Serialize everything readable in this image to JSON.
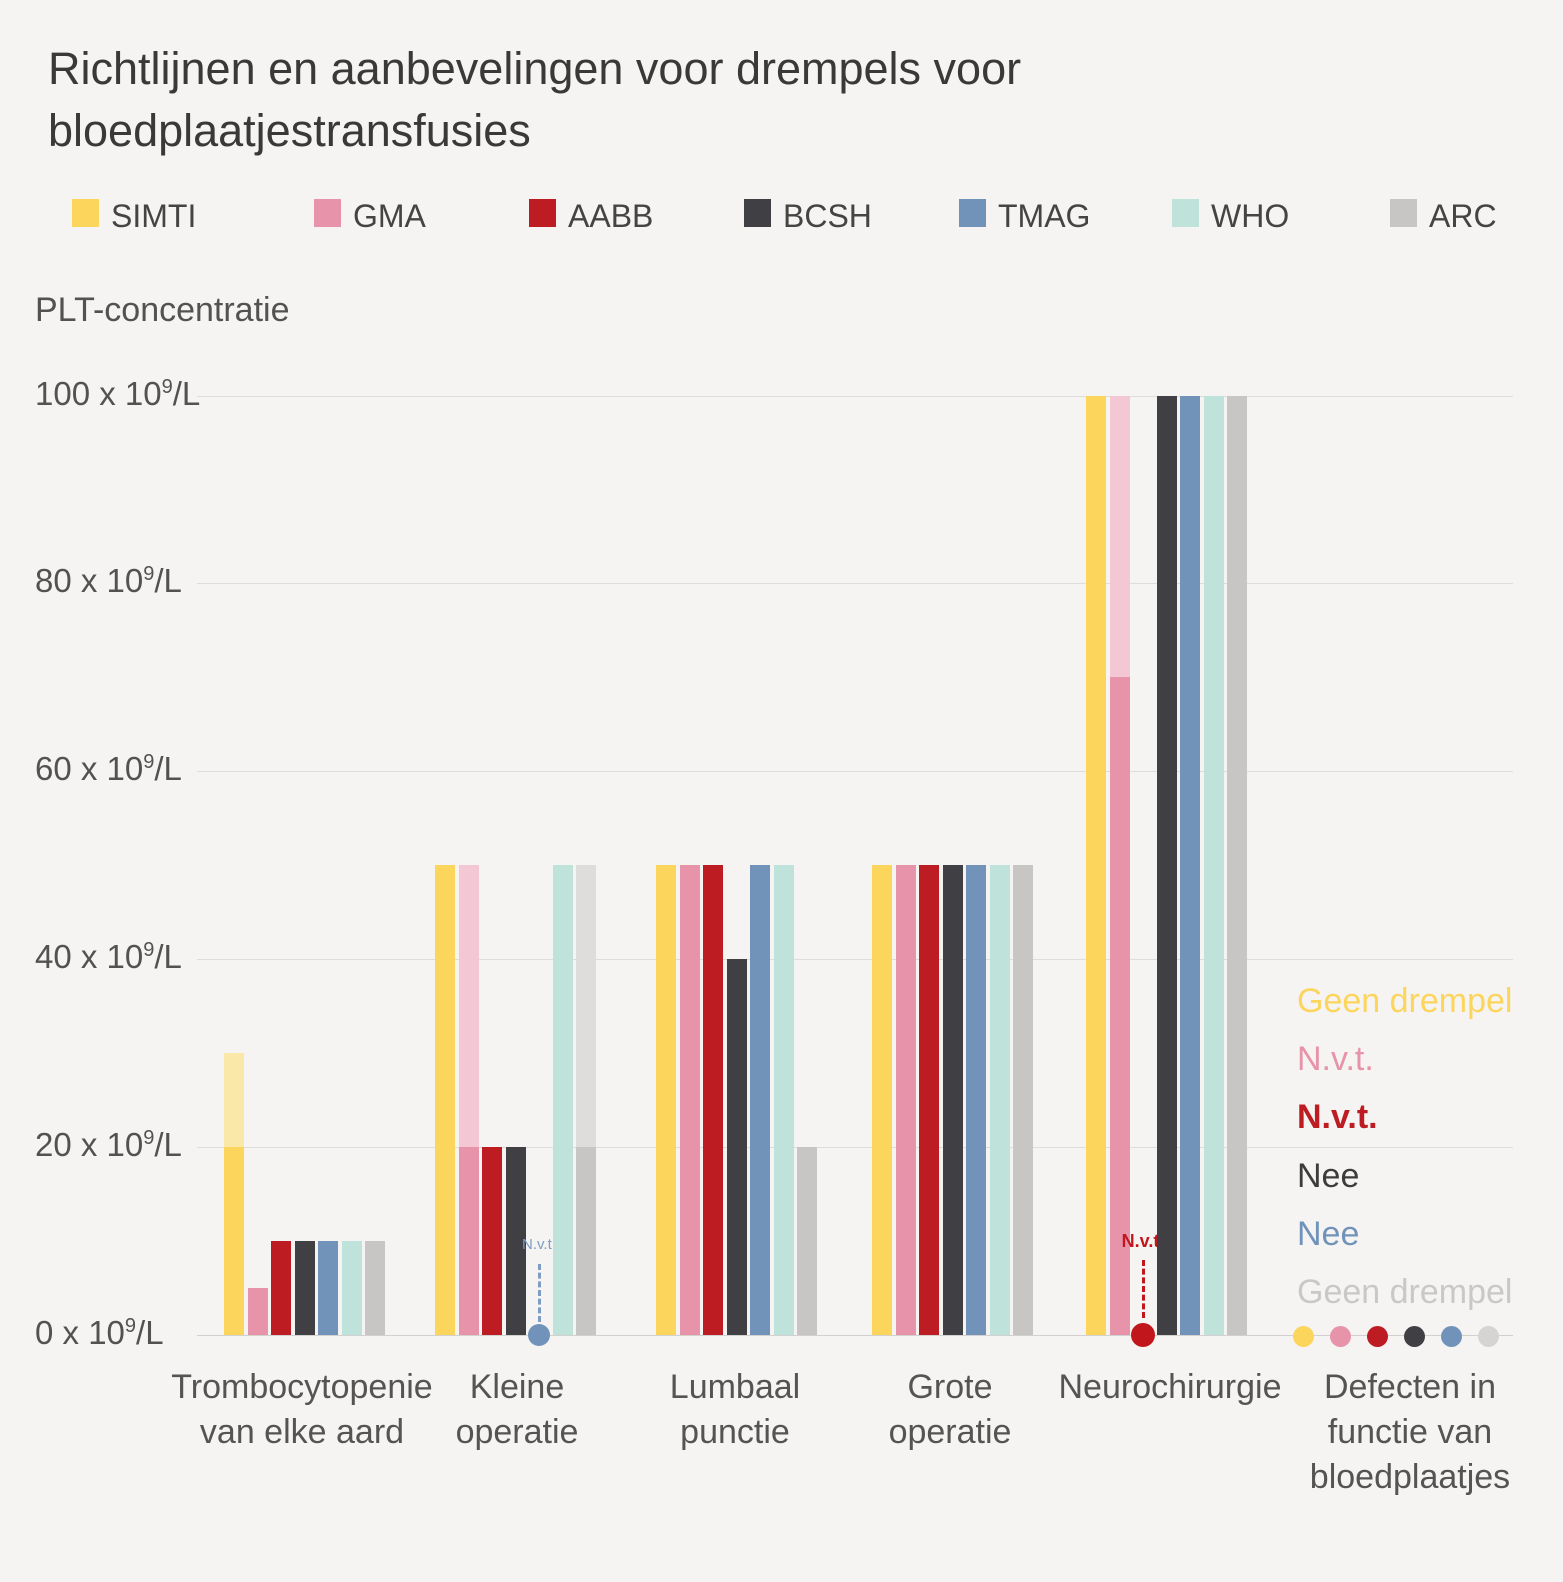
{
  "title": {
    "line1": "Richtlijnen en aanbevelingen voor drempels voor",
    "line2": "bloedplaatjestransfusies"
  },
  "colors": {
    "background": "#F5F4F2",
    "gridline": "#DEDDDB",
    "text_dark": "#3A3938",
    "text_gray": "#545251",
    "SIMTI": "#FBD55C",
    "SIMTI_light": "#FAE8A8",
    "GMA": "#E793AA",
    "GMA_light": "#F3C7D3",
    "AABB": "#BD1C22",
    "BCSH": "#403F44",
    "TMAG": "#7193BA",
    "WHO": "#BFE3DB",
    "ARC": "#C7C6C5",
    "ARC_light": "#DEDDDC",
    "annotation_blue": "#7E9DC3",
    "annotation_red": "#C0161C",
    "right_label_gray": "#C9C8C6"
  },
  "legend": [
    {
      "label": "SIMTI",
      "color": "#FBD55C"
    },
    {
      "label": "GMA",
      "color": "#E793AA"
    },
    {
      "label": "AABB",
      "color": "#BD1C22"
    },
    {
      "label": "BCSH",
      "color": "#403F44"
    },
    {
      "label": "TMAG",
      "color": "#7193BA"
    },
    {
      "label": "WHO",
      "color": "#BFE3DB"
    },
    {
      "label": "ARC",
      "color": "#C7C6C5"
    }
  ],
  "chart_data": {
    "type": "bar",
    "title": "Richtlijnen en aanbevelingen voor drempels voor bloedplaatjestransfusies",
    "ylabel": "PLT-concentratie",
    "xlabel": "",
    "unit": "x 10⁹/L",
    "ylim": [
      0,
      100
    ],
    "yticks": [
      0,
      20,
      40,
      60,
      80,
      100
    ],
    "tick_sep": " x 10",
    "tick_sup": "9",
    "tick_end": "/L",
    "grid": true,
    "series_names": [
      "SIMTI",
      "GMA",
      "AABB",
      "BCSH",
      "TMAG",
      "WHO",
      "ARC"
    ],
    "categories": [
      {
        "label_lines": [
          "Trombocytopenie",
          "van elke aard"
        ],
        "entries": [
          {
            "org": "SIMTI",
            "value": 20,
            "light_to": 30
          },
          {
            "org": "GMA",
            "value": 5
          },
          {
            "org": "AABB",
            "value": 10
          },
          {
            "org": "BCSH",
            "value": 10
          },
          {
            "org": "TMAG",
            "value": 10
          },
          {
            "org": "WHO",
            "value": 10
          },
          {
            "org": "ARC",
            "value": 10
          }
        ]
      },
      {
        "label_lines": [
          "Kleine",
          "operatie"
        ],
        "entries": [
          {
            "org": "SIMTI",
            "value": 50
          },
          {
            "org": "GMA",
            "value": 20,
            "light_to": 50
          },
          {
            "org": "AABB",
            "value": 20
          },
          {
            "org": "BCSH",
            "value": 20
          },
          {
            "org": "TMAG",
            "value": null,
            "annotation": "N.v.t.",
            "annotation_style": "blue"
          },
          {
            "org": "WHO",
            "value": 50
          },
          {
            "org": "ARC",
            "value": 20,
            "light_to": 50
          }
        ]
      },
      {
        "label_lines": [
          "Lumbaal",
          "punctie"
        ],
        "entries": [
          {
            "org": "SIMTI",
            "value": 50
          },
          {
            "org": "GMA",
            "value": 50
          },
          {
            "org": "AABB",
            "value": 50
          },
          {
            "org": "BCSH",
            "value": 40
          },
          {
            "org": "TMAG",
            "value": 50
          },
          {
            "org": "WHO",
            "value": 50
          },
          {
            "org": "ARC",
            "value": 20
          }
        ]
      },
      {
        "label_lines": [
          "Grote",
          "operatie"
        ],
        "entries": [
          {
            "org": "SIMTI",
            "value": 50
          },
          {
            "org": "GMA",
            "value": 50
          },
          {
            "org": "AABB",
            "value": 50
          },
          {
            "org": "BCSH",
            "value": 50
          },
          {
            "org": "TMAG",
            "value": 50
          },
          {
            "org": "WHO",
            "value": 50
          },
          {
            "org": "ARC",
            "value": 50
          }
        ]
      },
      {
        "label_lines": [
          "Neurochirurgie"
        ],
        "entries": [
          {
            "org": "SIMTI",
            "value": 100
          },
          {
            "org": "GMA",
            "value": 70,
            "light_to": 100
          },
          {
            "org": "AABB",
            "value": null,
            "annotation": "N.v.t.",
            "annotation_style": "red"
          },
          {
            "org": "BCSH",
            "value": 100
          },
          {
            "org": "TMAG",
            "value": 100
          },
          {
            "org": "WHO",
            "value": 100
          },
          {
            "org": "ARC",
            "value": 100
          }
        ]
      },
      {
        "label_lines": [
          "Defecten in",
          "functie van",
          "bloedplaatjes"
        ],
        "entries": [
          {
            "org": "SIMTI",
            "value": null,
            "dot": true,
            "label": "Geen drempel",
            "label_color": "#FBD55C",
            "bold": false
          },
          {
            "org": "GMA",
            "value": null,
            "dot": true,
            "label": "N.v.t.",
            "label_color": "#E793AA",
            "bold": false
          },
          {
            "org": "AABB",
            "value": null,
            "dot": true,
            "label": "N.v.t.",
            "label_color": "#BD1C22",
            "bold": true
          },
          {
            "org": "BCSH",
            "value": null,
            "dot": true,
            "label": "Nee",
            "label_color": "#3E3C3B",
            "bold": false
          },
          {
            "org": "TMAG",
            "value": null,
            "dot": true,
            "label": "Nee",
            "label_color": "#7193BA",
            "bold": false
          },
          {
            "org": "ARC",
            "value": null,
            "dot": true,
            "label": "Geen drempel",
            "label_color": "#C9C8C6",
            "bold": false
          }
        ]
      }
    ]
  }
}
